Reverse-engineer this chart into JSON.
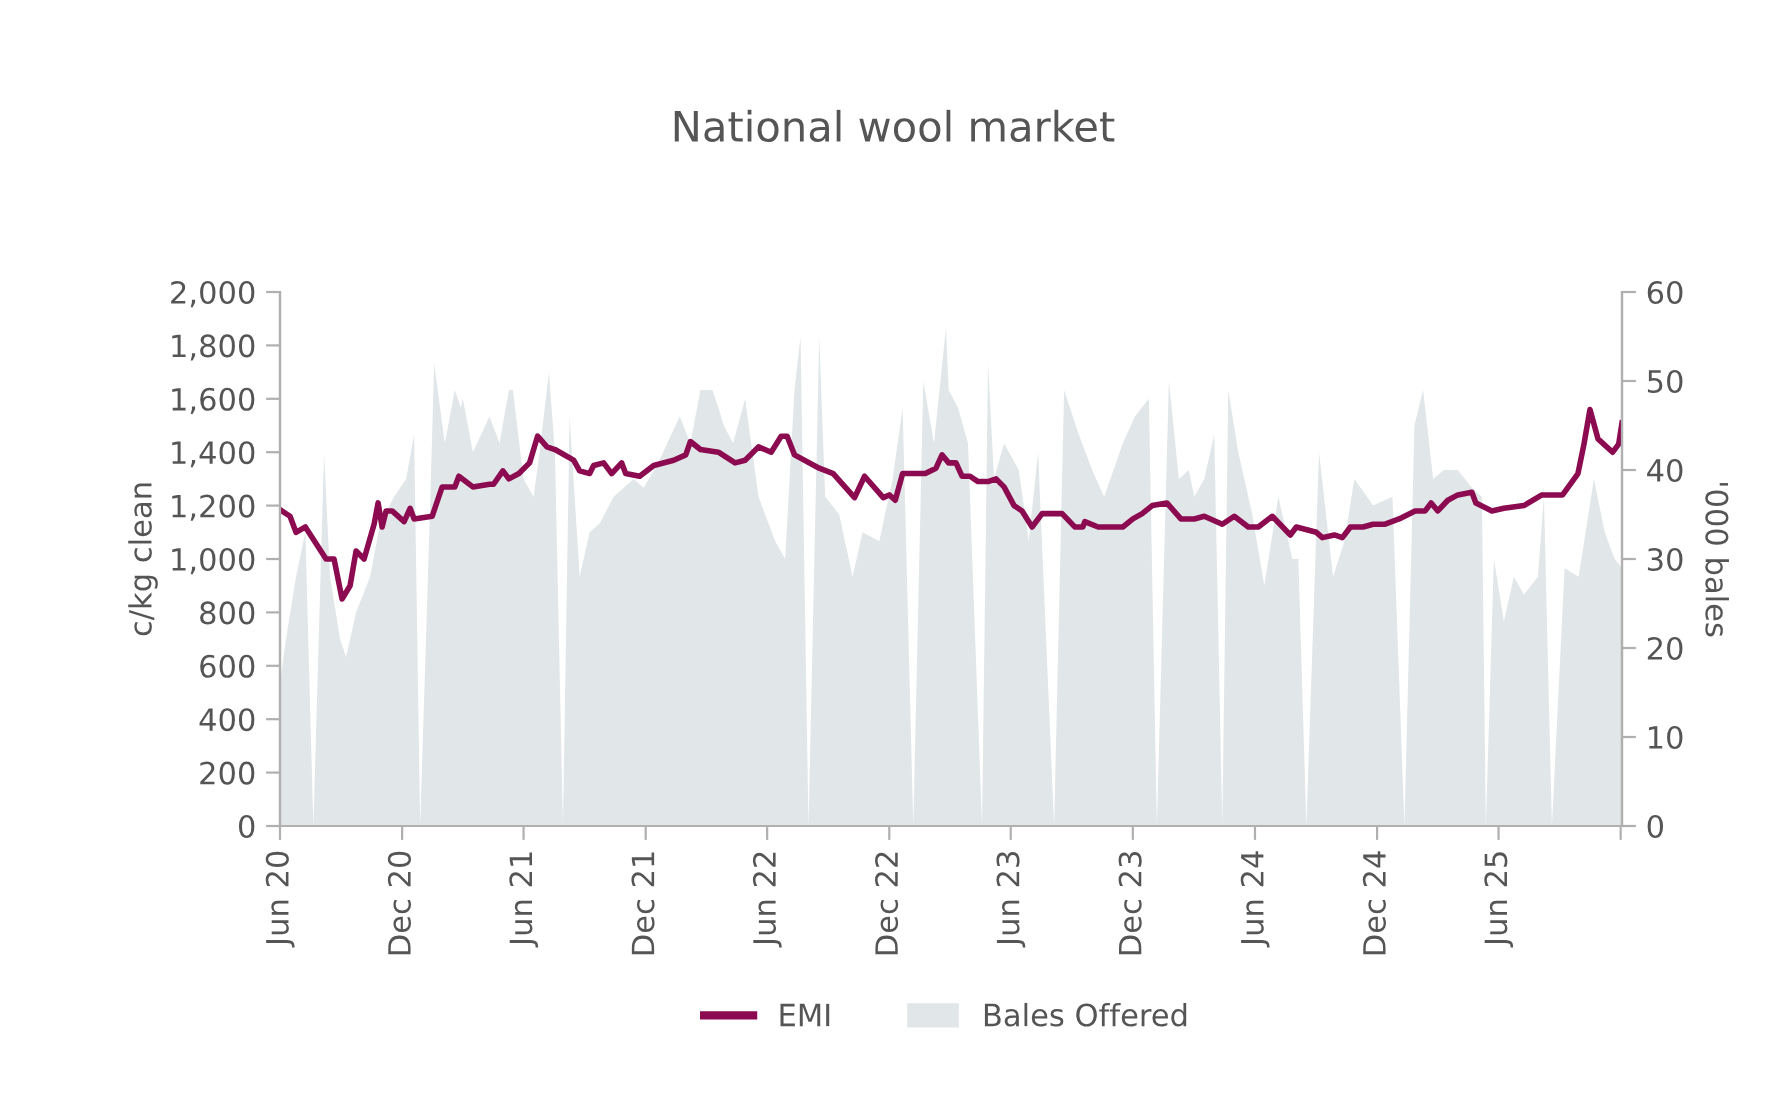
{
  "chart_data": {
    "type": "line",
    "title": "National wool market",
    "ylabel": "c/kg clean",
    "y2label": "'000 bales",
    "xlim": [
      "2020-06-01",
      "2025-12-03"
    ],
    "xticks": [
      {
        "value": "2020-06-01",
        "label": "Jun 20"
      },
      {
        "value": "2020-12-01",
        "label": "Dec 20"
      },
      {
        "value": "2021-06-01",
        "label": "Jun 21"
      },
      {
        "value": "2021-12-01",
        "label": "Dec 21"
      },
      {
        "value": "2022-06-01",
        "label": "Jun 22"
      },
      {
        "value": "2022-12-01",
        "label": "Dec 22"
      },
      {
        "value": "2023-06-01",
        "label": "Jun 23"
      },
      {
        "value": "2023-12-01",
        "label": "Dec 23"
      },
      {
        "value": "2024-06-01",
        "label": "Jun 24"
      },
      {
        "value": "2024-12-01",
        "label": "Dec 24"
      },
      {
        "value": "2025-06-01",
        "label": "Jun 25"
      },
      {
        "value": "2025-12-01",
        "label": null
      }
    ],
    "ylim": [
      0,
      2000
    ],
    "yticks": [
      0,
      200,
      400,
      600,
      800,
      {
        "value": 1000,
        "label": "1,000"
      },
      {
        "value": 1200,
        "label": "1,200"
      },
      {
        "value": 1400,
        "label": "1,400"
      },
      {
        "value": 1600,
        "label": "1,600"
      },
      {
        "value": 1800,
        "label": "1,800"
      },
      {
        "value": 2000,
        "label": "2,000"
      }
    ],
    "y2lim": [
      0,
      60
    ],
    "y2ticks": [
      0,
      10,
      20,
      30,
      40,
      50,
      60
    ],
    "grid": false,
    "legend": "bottom",
    "series": [
      {
        "name": "Bales Offered",
        "type": "area",
        "axis": "y2",
        "color": "#e1e6e8",
        "x": [
          "2020-06-01",
          "2020-06-10",
          "2020-06-25",
          "2020-07-09",
          "2020-07-21",
          "2020-08-06",
          "2020-08-15",
          "2020-08-30",
          "2020-09-08",
          "2020-09-23",
          "2020-10-14",
          "2020-10-29",
          "2020-11-19",
          "2020-12-07",
          "2020-12-19",
          "2020-12-28",
          "2021-01-12",
          "2021-01-18",
          "2021-02-03",
          "2021-02-18",
          "2021-02-27",
          "2021-03-02",
          "2021-03-17",
          "2021-04-11",
          "2021-04-26",
          "2021-05-10",
          "2021-05-16",
          "2021-06-01",
          "2021-06-16",
          "2021-06-25",
          "2021-07-09",
          "2021-07-18",
          "2021-07-30",
          "2021-08-09",
          "2021-08-24",
          "2021-09-08",
          "2021-09-23",
          "2021-10-14",
          "2021-11-13",
          "2021-11-28",
          "2021-12-21",
          "2022-01-21",
          "2022-02-06",
          "2022-02-21",
          "2022-03-11",
          "2022-03-20",
          "2022-03-28",
          "2022-04-11",
          "2022-04-29",
          "2022-05-19",
          "2022-06-13",
          "2022-06-28",
          "2022-07-12",
          "2022-07-21",
          "2022-08-02",
          "2022-08-18",
          "2022-08-27",
          "2022-09-17",
          "2022-10-07",
          "2022-10-22",
          "2022-11-16",
          "2022-12-06",
          "2022-12-21",
          "2023-01-06",
          "2023-01-21",
          "2023-02-06",
          "2023-02-24",
          "2023-02-28",
          "2023-03-14",
          "2023-03-29",
          "2023-04-19",
          "2023-04-28",
          "2023-05-07",
          "2023-05-22",
          "2023-06-13",
          "2023-06-28",
          "2023-07-12",
          "2023-08-05",
          "2023-08-20",
          "2023-09-11",
          "2023-10-01",
          "2023-10-19",
          "2023-11-16",
          "2023-12-04",
          "2023-12-25",
          "2024-01-06",
          "2024-01-24",
          "2024-02-08",
          "2024-02-23",
          "2024-03-02",
          "2024-03-17",
          "2024-04-01",
          "2024-04-13",
          "2024-04-22",
          "2024-05-07",
          "2024-05-28",
          "2024-06-15",
          "2024-07-06",
          "2024-07-27",
          "2024-08-05",
          "2024-08-17",
          "2024-09-05",
          "2024-09-26",
          "2024-10-13",
          "2024-10-28",
          "2024-11-25",
          "2024-12-24",
          "2025-01-11",
          "2025-01-26",
          "2025-02-08",
          "2025-02-23",
          "2025-03-11",
          "2025-04-01",
          "2025-04-22",
          "2025-05-07",
          "2025-05-13",
          "2025-05-25",
          "2025-06-09",
          "2025-06-24",
          "2025-07-09",
          "2025-07-30",
          "2025-08-08",
          "2025-08-20",
          "2025-09-08",
          "2025-09-29",
          "2025-10-22",
          "2025-11-07",
          "2025-11-22",
          "2025-12-03"
        ],
        "values": [
          16,
          21,
          28,
          33,
          0,
          42,
          28,
          21,
          19,
          24,
          28,
          34,
          37,
          39,
          44,
          0,
          36,
          52,
          43,
          49,
          47,
          48,
          42,
          46,
          43,
          49,
          49,
          39,
          37,
          42,
          51,
          42,
          0,
          46,
          28,
          33,
          34,
          37,
          39,
          38,
          41,
          46,
          43,
          49,
          49,
          47,
          45,
          43,
          48,
          37,
          32,
          30,
          49,
          55,
          0,
          55,
          37,
          35,
          28,
          33,
          32,
          39,
          47,
          0,
          50,
          43,
          56,
          49,
          47,
          43,
          0,
          52,
          39,
          43,
          40,
          32,
          42,
          0,
          49,
          44,
          40,
          37,
          43,
          46,
          48,
          0,
          50,
          39,
          40,
          37,
          39,
          44,
          0,
          49,
          42,
          35,
          27,
          37,
          30,
          30,
          0,
          42,
          28,
          32,
          39,
          36,
          37,
          0,
          45,
          49,
          39,
          40,
          40,
          38,
          37,
          0,
          30,
          23,
          28,
          26,
          28,
          37,
          0,
          29,
          28,
          39,
          33,
          30,
          29
        ]
      },
      {
        "name": "EMI",
        "color": "#8b0a50",
        "x": [
          "2020-06-04",
          "2020-06-16",
          "2020-06-25",
          "2020-07-09",
          "2020-08-09",
          "2020-08-21",
          "2020-09-02",
          "2020-09-14",
          "2020-09-23",
          "2020-10-05",
          "2020-10-20",
          "2020-10-26",
          "2020-11-01",
          "2020-11-07",
          "2020-11-16",
          "2020-12-04",
          "2020-12-13",
          "2020-12-19",
          "2021-01-15",
          "2021-01-30",
          "2021-02-18",
          "2021-02-24",
          "2021-03-17",
          "2021-04-11",
          "2021-04-17",
          "2021-05-01",
          "2021-05-10",
          "2021-05-25",
          "2021-06-10",
          "2021-06-22",
          "2021-07-06",
          "2021-07-18",
          "2021-08-15",
          "2021-08-24",
          "2021-09-08",
          "2021-09-14",
          "2021-09-29",
          "2021-10-11",
          "2021-10-26",
          "2021-11-01",
          "2021-11-22",
          "2021-12-13",
          "2022-01-12",
          "2022-01-30",
          "2022-02-06",
          "2022-02-21",
          "2022-03-20",
          "2022-04-14",
          "2022-04-29",
          "2022-05-19",
          "2022-06-07",
          "2022-06-22",
          "2022-07-01",
          "2022-07-12",
          "2022-08-18",
          "2022-09-08",
          "2022-10-10",
          "2022-10-25",
          "2022-11-22",
          "2022-12-01",
          "2022-12-10",
          "2022-12-21",
          "2023-01-24",
          "2023-02-09",
          "2023-02-18",
          "2023-02-28",
          "2023-03-11",
          "2023-03-20",
          "2023-04-01",
          "2023-04-13",
          "2023-04-28",
          "2023-05-10",
          "2023-05-22",
          "2023-06-06",
          "2023-06-18",
          "2023-07-03",
          "2023-07-18",
          "2023-08-17",
          "2023-09-05",
          "2023-09-17",
          "2023-09-20",
          "2023-10-10",
          "2023-10-25",
          "2023-11-16",
          "2023-12-01",
          "2023-12-15",
          "2023-12-30",
          "2024-01-21",
          "2024-02-11",
          "2024-03-02",
          "2024-03-17",
          "2024-04-13",
          "2024-05-01",
          "2024-05-22",
          "2024-06-06",
          "2024-06-27",
          "2024-07-24",
          "2024-08-02",
          "2024-09-01",
          "2024-09-10",
          "2024-09-28",
          "2024-10-10",
          "2024-10-22",
          "2024-11-10",
          "2024-11-25",
          "2024-12-12",
          "2025-01-03",
          "2025-01-27",
          "2025-02-11",
          "2025-02-20",
          "2025-03-02",
          "2025-03-17",
          "2025-04-01",
          "2025-04-22",
          "2025-04-28",
          "2025-05-22",
          "2025-06-09",
          "2025-07-09",
          "2025-08-05",
          "2025-09-05",
          "2025-09-28",
          "2025-10-07",
          "2025-10-16",
          "2025-10-28",
          "2025-11-19",
          "2025-11-28",
          "2025-12-03"
        ],
        "values": [
          1180,
          1160,
          1100,
          1120,
          1000,
          1000,
          850,
          900,
          1030,
          1000,
          1130,
          1210,
          1120,
          1180,
          1180,
          1140,
          1190,
          1150,
          1160,
          1270,
          1270,
          1310,
          1270,
          1280,
          1280,
          1330,
          1300,
          1320,
          1360,
          1460,
          1420,
          1410,
          1370,
          1330,
          1320,
          1350,
          1360,
          1320,
          1360,
          1320,
          1310,
          1350,
          1370,
          1390,
          1440,
          1410,
          1400,
          1360,
          1370,
          1420,
          1400,
          1460,
          1460,
          1390,
          1340,
          1320,
          1230,
          1310,
          1230,
          1240,
          1220,
          1320,
          1320,
          1340,
          1390,
          1360,
          1360,
          1310,
          1310,
          1290,
          1290,
          1300,
          1270,
          1200,
          1180,
          1120,
          1170,
          1170,
          1120,
          1120,
          1140,
          1120,
          1120,
          1120,
          1150,
          1170,
          1200,
          1210,
          1150,
          1150,
          1160,
          1130,
          1160,
          1120,
          1120,
          1160,
          1090,
          1120,
          1100,
          1080,
          1090,
          1080,
          1120,
          1120,
          1130,
          1130,
          1150,
          1180,
          1180,
          1210,
          1180,
          1220,
          1240,
          1250,
          1210,
          1180,
          1190,
          1200,
          1240,
          1240,
          1320,
          1430,
          1560,
          1450,
          1400,
          1430,
          1510
        ]
      }
    ]
  }
}
